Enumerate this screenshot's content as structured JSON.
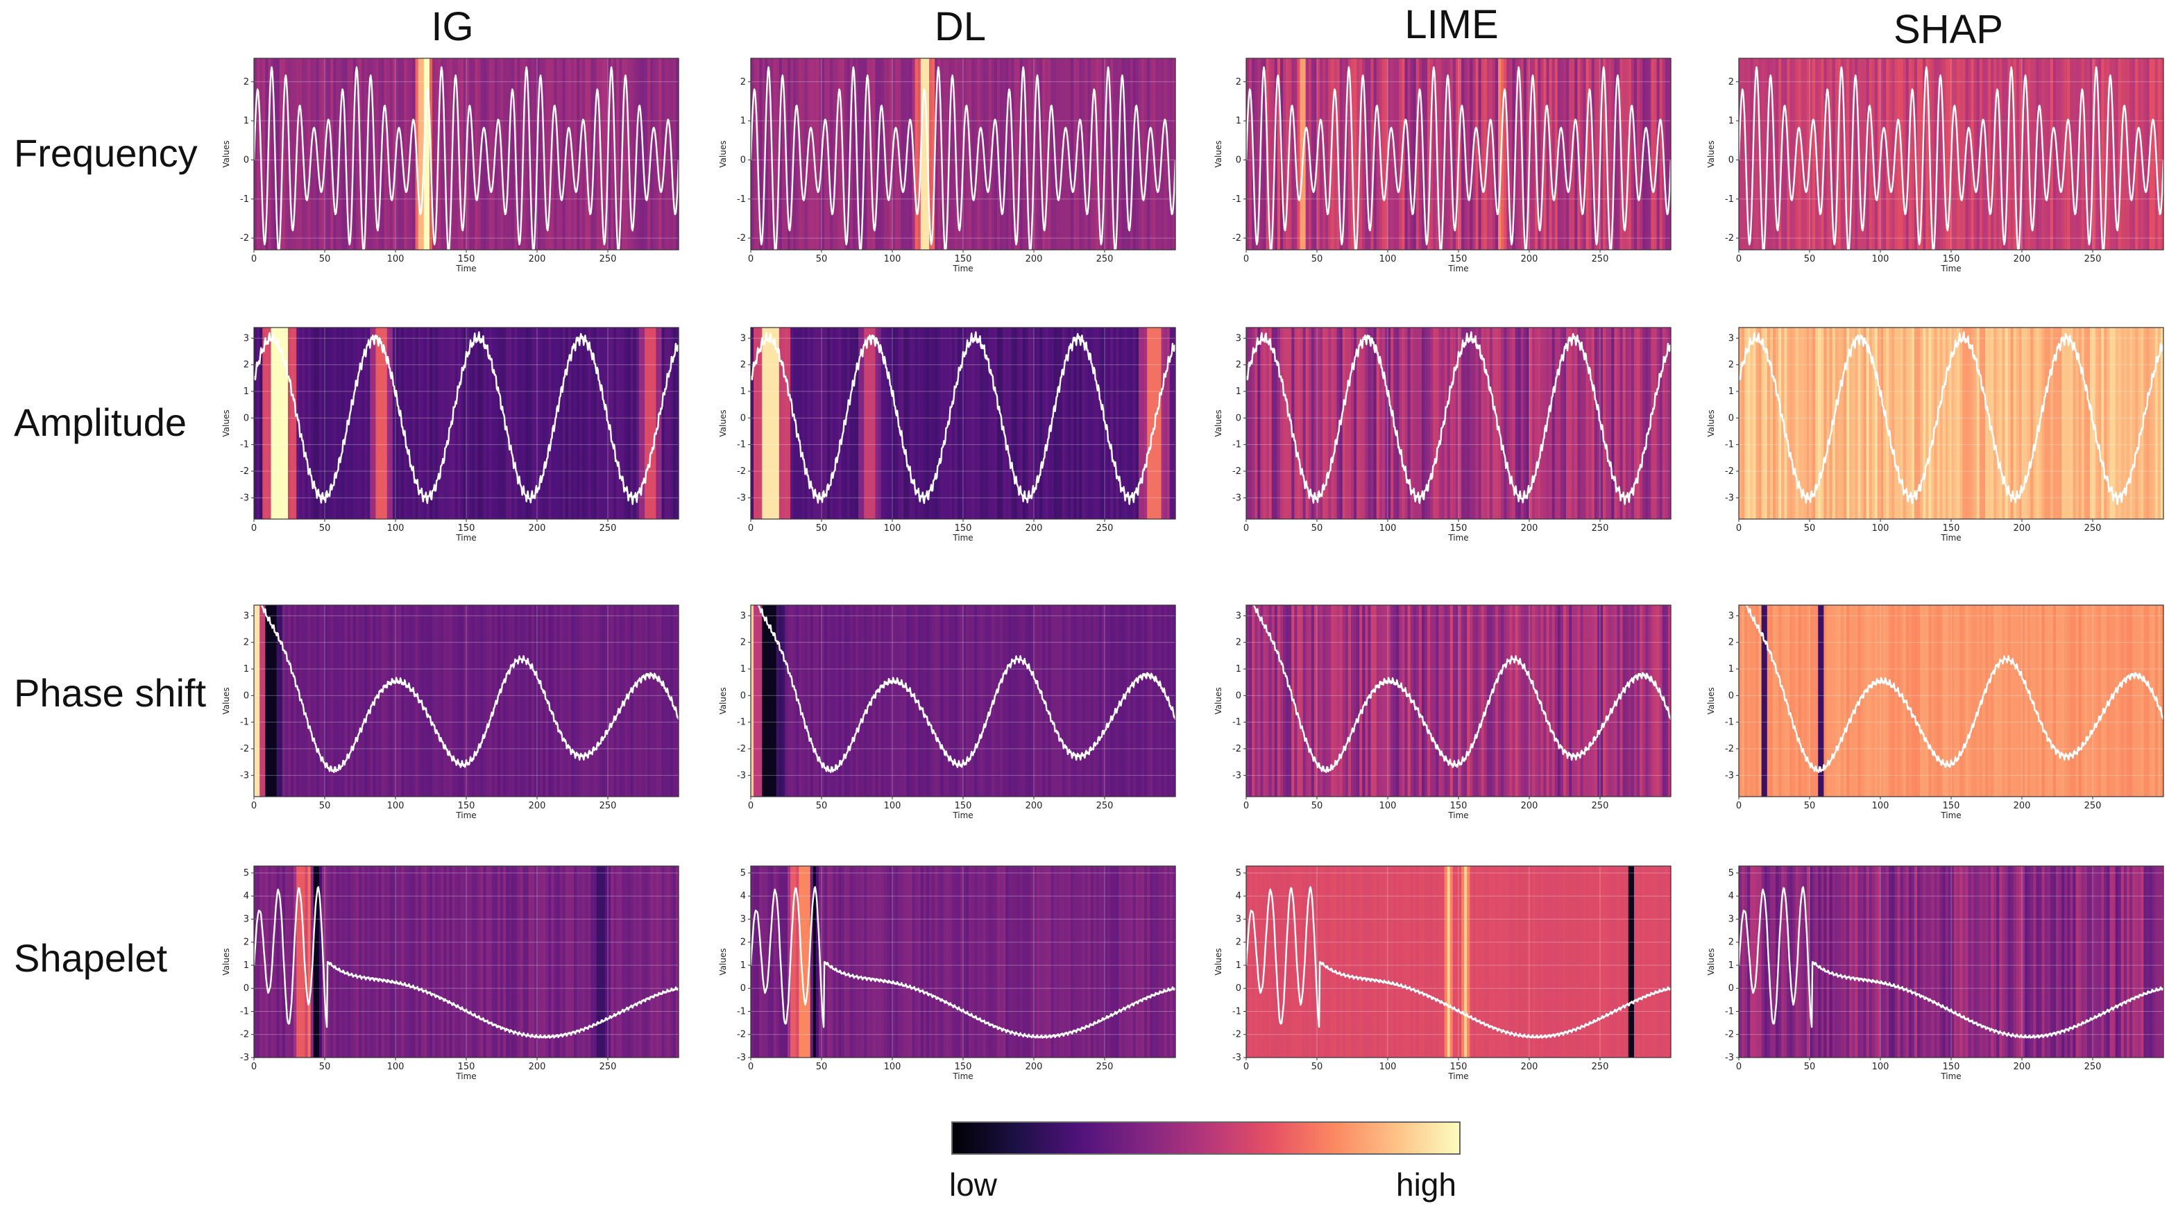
{
  "figure": {
    "columns": [
      "IG",
      "DL",
      "LIME",
      "SHAP"
    ],
    "rows": [
      "Frequency",
      "Amplitude",
      "Phase shift",
      "Shapelet"
    ],
    "colorbar": {
      "low_label": "low",
      "high_label": "high",
      "colormap": "magma"
    }
  },
  "chart_data": {
    "type": "heatmap",
    "title": "",
    "xlabel": "Time",
    "ylabel": "Values",
    "x_range": [
      0,
      300
    ],
    "xticks": [
      0,
      50,
      100,
      150,
      200,
      250
    ],
    "rows": [
      {
        "name": "Frequency",
        "ylim": [
          -2.3,
          2.6
        ],
        "yticks": [
          -2,
          -1,
          0,
          1,
          2
        ],
        "signal": {
          "kind": "sine",
          "offset": 0,
          "amp": 1.6,
          "period": 10,
          "phase": 0,
          "mod_amp": 0.5,
          "mod_period": 60,
          "noise": 0
        },
        "cells": [
          {
            "method": "IG",
            "base": 0.42,
            "var": 0.05,
            "spikes": [
              [
                120,
                3,
                1.0
              ],
              [
                118,
                1,
                0.85
              ]
            ]
          },
          {
            "method": "DL",
            "base": 0.42,
            "var": 0.05,
            "spikes": [
              [
                123,
                3,
                0.95
              ]
            ]
          },
          {
            "method": "LIME",
            "base": 0.5,
            "var": 0.12,
            "spikes": [
              [
                40,
                1,
                0.8
              ],
              [
                180,
                1,
                0.75
              ]
            ]
          },
          {
            "method": "SHAP",
            "base": 0.55,
            "var": 0.07,
            "spikes": []
          }
        ]
      },
      {
        "name": "Amplitude",
        "ylim": [
          -3.8,
          3.4
        ],
        "yticks": [
          -3,
          -2,
          -1,
          0,
          1,
          2,
          3
        ],
        "signal": {
          "kind": "sine",
          "offset": 0,
          "amp": 3.0,
          "period": 73,
          "phase": 0.5,
          "mod_amp": 0,
          "mod_period": 1,
          "noise": 0.25
        },
        "cells": [
          {
            "method": "IG",
            "base": 0.25,
            "var": 0.04,
            "spikes": [
              [
                18,
                5,
                1.0
              ],
              [
                90,
                4,
                0.65
              ],
              [
                280,
                4,
                0.6
              ]
            ]
          },
          {
            "method": "DL",
            "base": 0.25,
            "var": 0.04,
            "spikes": [
              [
                15,
                6,
                0.95
              ],
              [
                84,
                4,
                0.55
              ],
              [
                285,
                5,
                0.7
              ]
            ]
          },
          {
            "method": "LIME",
            "base": 0.45,
            "var": 0.12,
            "spikes": []
          },
          {
            "method": "SHAP",
            "base": 0.86,
            "var": 0.07,
            "spikes": []
          }
        ]
      },
      {
        "name": "Phase shift",
        "ylim": [
          -3.8,
          3.4
        ],
        "yticks": [
          -3,
          -2,
          -1,
          0,
          1,
          2,
          3
        ],
        "signal": {
          "kind": "decay",
          "offset": -0.8,
          "amp": 2.2,
          "period": 88,
          "phase": 0.6,
          "mod_amp": 0,
          "mod_period": 1,
          "noise": 0.15
        },
        "cells": [
          {
            "method": "IG",
            "base": 0.32,
            "var": 0.03,
            "spikes": [
              [
                3,
                4,
                0.95
              ],
              [
                12,
                4,
                0.05
              ]
            ]
          },
          {
            "method": "DL",
            "base": 0.32,
            "var": 0.03,
            "spikes": [
              [
                4,
                4,
                0.9
              ],
              [
                13,
                5,
                0.05
              ]
            ]
          },
          {
            "method": "LIME",
            "base": 0.45,
            "var": 0.12,
            "spikes": []
          },
          {
            "method": "SHAP",
            "base": 0.78,
            "var": 0.03,
            "spikes": [
              [
                18,
                1,
                0.2
              ],
              [
                58,
                1,
                0.2
              ]
            ]
          }
        ]
      },
      {
        "name": "Shapelet",
        "ylim": [
          -3,
          5.3
        ],
        "yticks": [
          -3,
          -2,
          -1,
          0,
          1,
          2,
          3,
          4,
          5
        ],
        "signal": {
          "kind": "shapelet",
          "offset": -1.0,
          "amp": 1.0,
          "period": 14,
          "phase": 0,
          "mod_amp": 0,
          "mod_period": 1,
          "noise": 0.08
        },
        "cells": [
          {
            "method": "IG",
            "base": 0.35,
            "var": 0.04,
            "spikes": [
              [
                33,
                2,
                0.65
              ],
              [
                40,
                2,
                0.7
              ],
              [
                44,
                2,
                0.05
              ],
              [
                245,
                3,
                0.2
              ]
            ]
          },
          {
            "method": "DL",
            "base": 0.35,
            "var": 0.04,
            "spikes": [
              [
                30,
                2,
                0.65
              ],
              [
                38,
                3,
                0.75
              ],
              [
                45,
                1,
                0.05
              ]
            ]
          },
          {
            "method": "LIME",
            "base": 0.6,
            "var": 0.01,
            "spikes": [
              [
                143,
                1,
                0.9
              ],
              [
                155,
                1,
                0.9
              ],
              [
                272,
                1,
                0.05
              ]
            ]
          },
          {
            "method": "SHAP",
            "base": 0.4,
            "var": 0.1,
            "spikes": []
          }
        ]
      }
    ]
  }
}
